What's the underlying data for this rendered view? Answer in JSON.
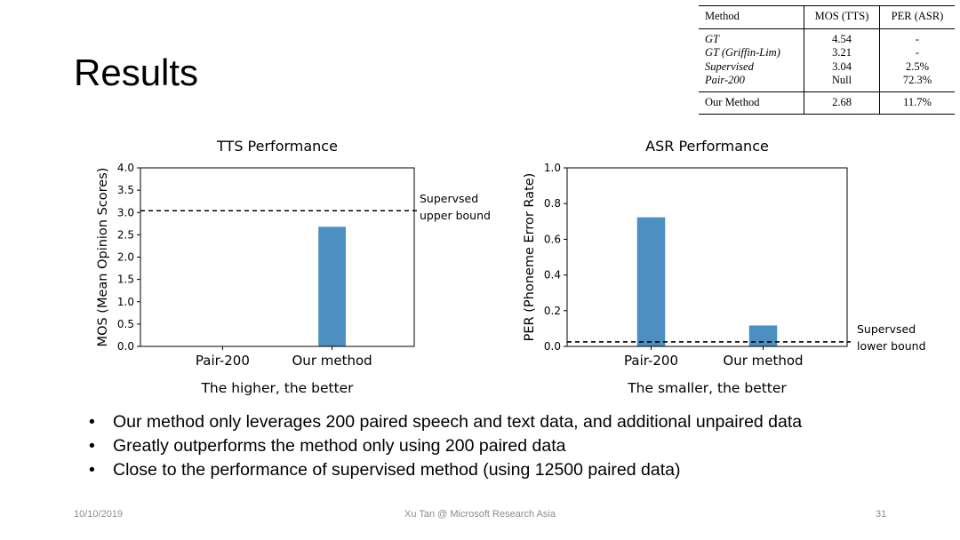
{
  "slide": {
    "title": "Results",
    "bullets": [
      "Our method only leverages 200 paired speech and text data, and additional unpaired data",
      "Greatly outperforms the method only using 200 paired data",
      "Close to the performance of supervised method (using 12500 paired data)"
    ]
  },
  "table": {
    "headers": [
      "Method",
      "MOS (TTS)",
      "PER (ASR)"
    ],
    "rows": [
      [
        "GT",
        "4.54",
        "-"
      ],
      [
        "GT (Griffin-Lim)",
        "3.21",
        "-"
      ],
      [
        "Supervised",
        "3.04",
        "2.5%"
      ],
      [
        "Pair-200",
        "Null",
        "72.3%"
      ]
    ],
    "ours": [
      "Our Method",
      "2.68",
      "11.7%"
    ]
  },
  "footer": {
    "date": "10/10/2019",
    "center": "Xu Tan @ Microsoft Research Asia",
    "page": "31"
  },
  "colors": {
    "bar": "#4c8fc1",
    "axis": "#000000",
    "reference_line": "#000000"
  },
  "chart_data": [
    {
      "type": "bar",
      "title": "TTS Performance",
      "categories": [
        "Pair-200",
        "Our method"
      ],
      "values": [
        0,
        2.68
      ],
      "ylabel": "MOS (Mean Opinion Scores)",
      "xlabel": "The higher, the better",
      "ylim": [
        0,
        4.0
      ],
      "yticks": [
        0.0,
        0.5,
        1.0,
        1.5,
        2.0,
        2.5,
        3.0,
        3.5,
        4.0
      ],
      "ytick_labels": [
        "0.0",
        "0.5",
        "1.0",
        "1.5",
        "2.0",
        "2.5",
        "3.0",
        "3.5",
        "4.0"
      ],
      "reference_line": {
        "value": 3.04,
        "style": "dashed",
        "label_lines": [
          "Supervsed",
          "upper bound"
        ]
      }
    },
    {
      "type": "bar",
      "title": "ASR Performance",
      "categories": [
        "Pair-200",
        "Our method"
      ],
      "values": [
        0.723,
        0.117
      ],
      "ylabel": "PER (Phoneme Error Rate)",
      "xlabel": "The smaller, the better",
      "ylim": [
        0,
        1.0
      ],
      "yticks": [
        0.0,
        0.2,
        0.4,
        0.6,
        0.8,
        1.0
      ],
      "ytick_labels": [
        "0.0",
        "0.2",
        "0.4",
        "0.6",
        "0.8",
        "1.0"
      ],
      "reference_line": {
        "value": 0.025,
        "style": "dashed",
        "label_lines": [
          "Supervsed",
          "lower bound"
        ]
      }
    }
  ]
}
